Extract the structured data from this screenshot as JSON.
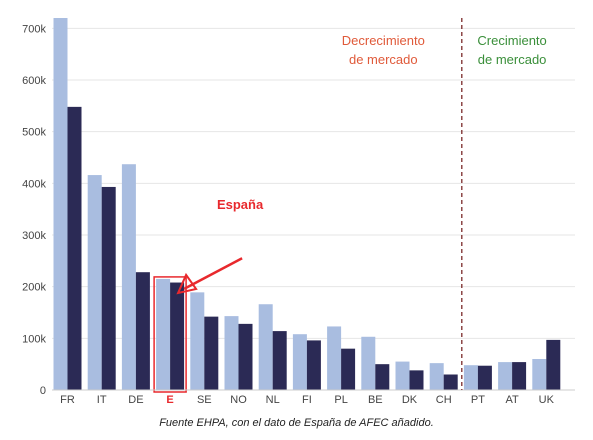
{
  "chart_data": {
    "type": "bar",
    "categories": [
      "FR",
      "IT",
      "DE",
      "E",
      "SE",
      "NO",
      "NL",
      "FI",
      "PL",
      "BE",
      "DK",
      "CH",
      "PT",
      "AT",
      "UK"
    ],
    "series": [
      {
        "values": [
          720000,
          416000,
          437000,
          215000,
          189000,
          143000,
          166000,
          108000,
          123000,
          103000,
          55000,
          52000,
          48000,
          54000,
          60000
        ]
      },
      {
        "values": [
          548000,
          393000,
          228000,
          208000,
          142000,
          128000,
          114000,
          96000,
          80000,
          50000,
          38000,
          30000,
          47000,
          54000,
          97000
        ]
      }
    ],
    "yticks": [
      {
        "value": 0,
        "label": "0"
      },
      {
        "value": 100000,
        "label": "100k"
      },
      {
        "value": 200000,
        "label": "200k"
      },
      {
        "value": 300000,
        "label": "300k"
      },
      {
        "value": 400000,
        "label": "400k"
      },
      {
        "value": 500000,
        "label": "500k"
      },
      {
        "value": 600000,
        "label": "600k"
      },
      {
        "value": 700000,
        "label": "700k"
      }
    ],
    "ylim": [
      0,
      720000
    ],
    "grid": true,
    "highlight_category": "E",
    "divider_after": "CH",
    "annotations": {
      "decrease": [
        "Decrecimiento",
        "de mercado"
      ],
      "growth": [
        "Crecimiento",
        "de mercado"
      ],
      "spain": "España"
    },
    "caption": "Fuente EHPA, con el dato de España de AFEC añadido."
  },
  "colors": {
    "series_light": "#a9bde0",
    "series_dark": "#2b2a55",
    "grid": "#e6e6e6",
    "decrease": "#e05a3a",
    "growth": "#3a8f3a",
    "highlight": "#e8292d",
    "tick": "#444444"
  }
}
